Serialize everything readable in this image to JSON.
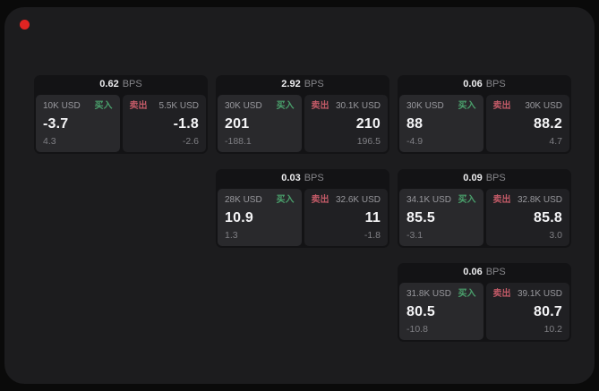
{
  "page": {
    "background": "#0a0a0a",
    "panel_background": "#1c1c1e",
    "card_background": "#131315",
    "record_dot_color": "#df2422"
  },
  "labels": {
    "buy": "买入",
    "sell": "卖出",
    "bps": "BPS"
  },
  "colors": {
    "buy_label": "#4aa06c",
    "sell_label": "#c25a67",
    "value_text": "#f4f4f6",
    "muted_text": "#98989d"
  },
  "cards": [
    {
      "col": 0,
      "row": 0,
      "bps": "0.62",
      "buy": {
        "size": "10K USD",
        "price": "-3.7",
        "delta": "4.3"
      },
      "sell": {
        "size": "5.5K USD",
        "price": "-1.8",
        "delta": "-2.6"
      }
    },
    {
      "col": 1,
      "row": 0,
      "bps": "2.92",
      "buy": {
        "size": "30K USD",
        "price": "201",
        "delta": "-188.1"
      },
      "sell": {
        "size": "30.1K USD",
        "price": "210",
        "delta": "196.5"
      }
    },
    {
      "col": 2,
      "row": 0,
      "bps": "0.06",
      "buy": {
        "size": "30K USD",
        "price": "88",
        "delta": "-4.9"
      },
      "sell": {
        "size": "30K USD",
        "price": "88.2",
        "delta": "4.7"
      }
    },
    {
      "col": 1,
      "row": 1,
      "bps": "0.03",
      "buy": {
        "size": "28K USD",
        "price": "10.9",
        "delta": "1.3"
      },
      "sell": {
        "size": "32.6K USD",
        "price": "11",
        "delta": "-1.8"
      }
    },
    {
      "col": 2,
      "row": 1,
      "bps": "0.09",
      "buy": {
        "size": "34.1K USD",
        "price": "85.5",
        "delta": "-3.1"
      },
      "sell": {
        "size": "32.8K USD",
        "price": "85.8",
        "delta": "3.0"
      }
    },
    {
      "col": 2,
      "row": 2,
      "bps": "0.06",
      "buy": {
        "size": "31.8K USD",
        "price": "80.5",
        "delta": "-10.8"
      },
      "sell": {
        "size": "39.1K USD",
        "price": "80.7",
        "delta": "10.2"
      }
    }
  ]
}
